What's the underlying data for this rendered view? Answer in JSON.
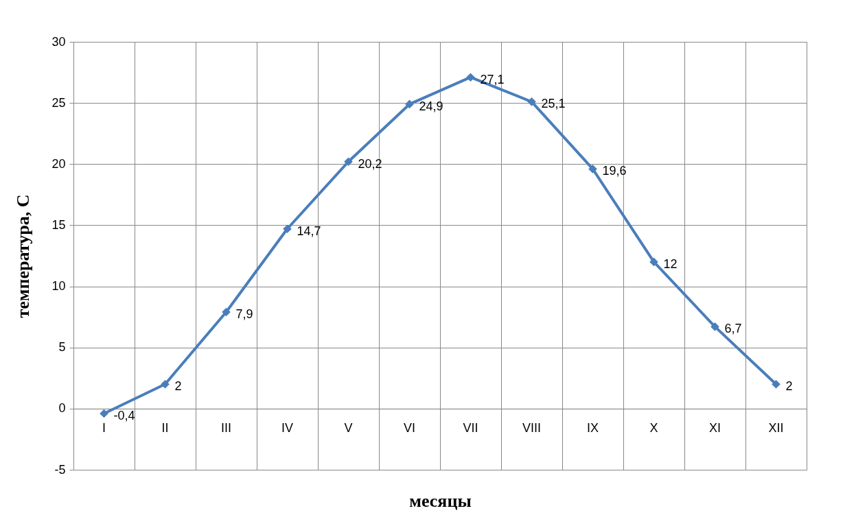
{
  "chart_data": {
    "type": "line",
    "xlabel": "месяцы",
    "ylabel": "температура,   С",
    "categories": [
      "I",
      "II",
      "III",
      "IV",
      "V",
      "VI",
      "VII",
      "VIII",
      "IX",
      "X",
      "XI",
      "XII"
    ],
    "series": [
      {
        "color": "#4a7ebb",
        "values": [
          -0.4,
          2,
          7.9,
          14.7,
          20.2,
          24.9,
          27.1,
          25.1,
          19.6,
          12,
          6.7,
          2
        ],
        "value_labels": [
          "-0,4",
          "2",
          "7,9",
          "14,7",
          "20,2",
          "24,9",
          "27,1",
          "25,1",
          "19,6",
          "12",
          "6,7",
          "2"
        ]
      }
    ],
    "ylim": [
      -5,
      30
    ],
    "yticks": [
      -5,
      0,
      5,
      10,
      15,
      20,
      25,
      30
    ],
    "grid": true,
    "marker": "diamond",
    "line_style": "solid"
  }
}
